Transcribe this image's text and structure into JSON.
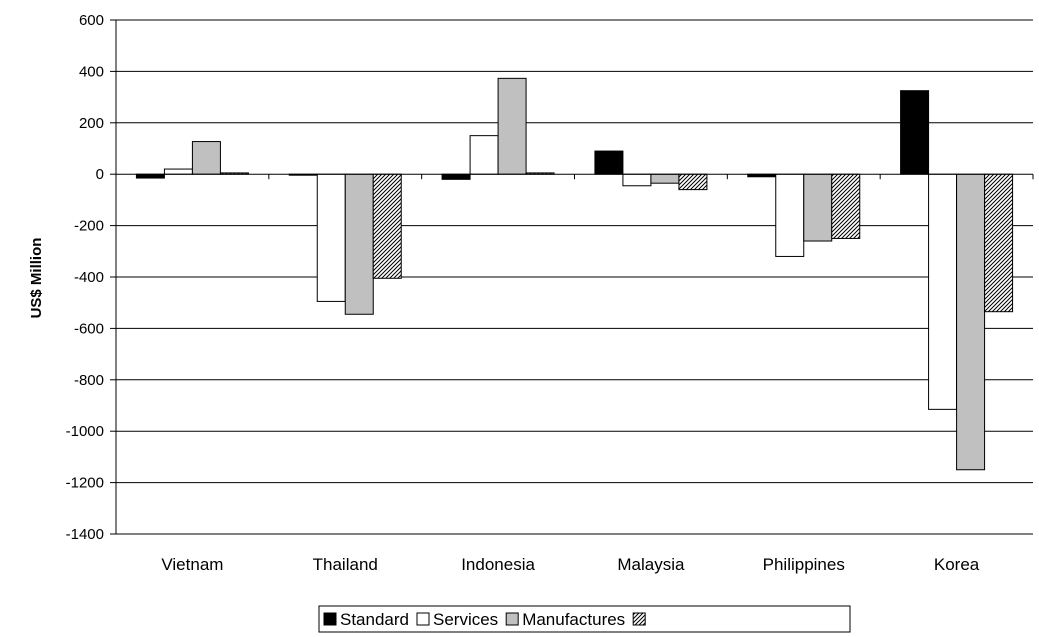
{
  "chart_data": {
    "type": "bar",
    "title": "",
    "xlabel": "",
    "ylabel": "US$ Million",
    "ylim": [
      -1400,
      600
    ],
    "ytick_step": 200,
    "grid": true,
    "legend_position": "bottom",
    "categories": [
      "Vietnam",
      "Thailand",
      "Indonesia",
      "Malaysia",
      "Philippines",
      "Korea"
    ],
    "series": [
      {
        "name": "Standard",
        "fill": "#000000",
        "pattern": "solid",
        "values": [
          -15,
          0,
          -20,
          90,
          -10,
          325
        ]
      },
      {
        "name": "Services",
        "fill": "#ffffff",
        "pattern": "solid",
        "values": [
          20,
          -495,
          150,
          -45,
          -320,
          -915
        ]
      },
      {
        "name": "Manufactures",
        "fill": "#c0c0c0",
        "pattern": "solid",
        "values": [
          127,
          -545,
          373,
          -35,
          -260,
          -1150
        ]
      },
      {
        "name": "",
        "fill": "#ffffff",
        "pattern": "hatch",
        "values": [
          5,
          -405,
          5,
          -60,
          -250,
          -535
        ]
      }
    ]
  }
}
